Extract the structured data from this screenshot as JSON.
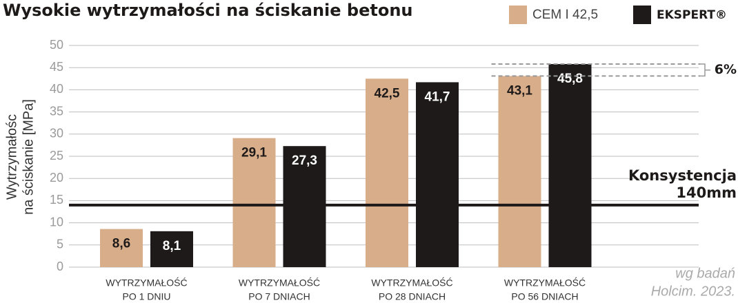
{
  "chart_data": {
    "type": "bar",
    "title": "Wysokie wytrzymałości na ściskanie betonu",
    "y_label": [
      "Wytrzymałośc",
      "na ściskanie [MPa]"
    ],
    "categories": [
      [
        "WYTRZYMAŁOŚĆ",
        "PO 1 DNIU"
      ],
      [
        "WYTRZYMAŁOŚĆ",
        "PO 7 DNIACH"
      ],
      [
        "WYTRZYMAŁOŚĆ",
        "PO 28 DNIACH"
      ],
      [
        "WYTRZYMAŁOŚĆ",
        "PO 56 DNIACH"
      ]
    ],
    "series": [
      {
        "name": "CEM I 42,5",
        "color": "#d8ad89",
        "values": [
          8.6,
          29.1,
          42.5,
          43.1
        ],
        "value_labels": [
          "8,6",
          "29,1",
          "42,5",
          "43,1"
        ]
      },
      {
        "name": "EKSPERT®",
        "color": "#1e1a1a",
        "values": [
          8.1,
          27.3,
          41.7,
          45.8
        ],
        "value_labels": [
          "8,1",
          "27,3",
          "41,7",
          "45,8"
        ]
      }
    ],
    "ylim": [
      0,
      50
    ],
    "yticks": [
      0,
      5,
      10,
      15,
      20,
      25,
      30,
      35,
      40,
      45,
      50
    ],
    "grid": true,
    "legend": "top-right",
    "reference_line": {
      "value": 14,
      "label": [
        "Konsystencja",
        "140mm"
      ]
    },
    "difference_annotation": "6%",
    "source_note": [
      "wg badań",
      "Holcim. 2023."
    ]
  }
}
